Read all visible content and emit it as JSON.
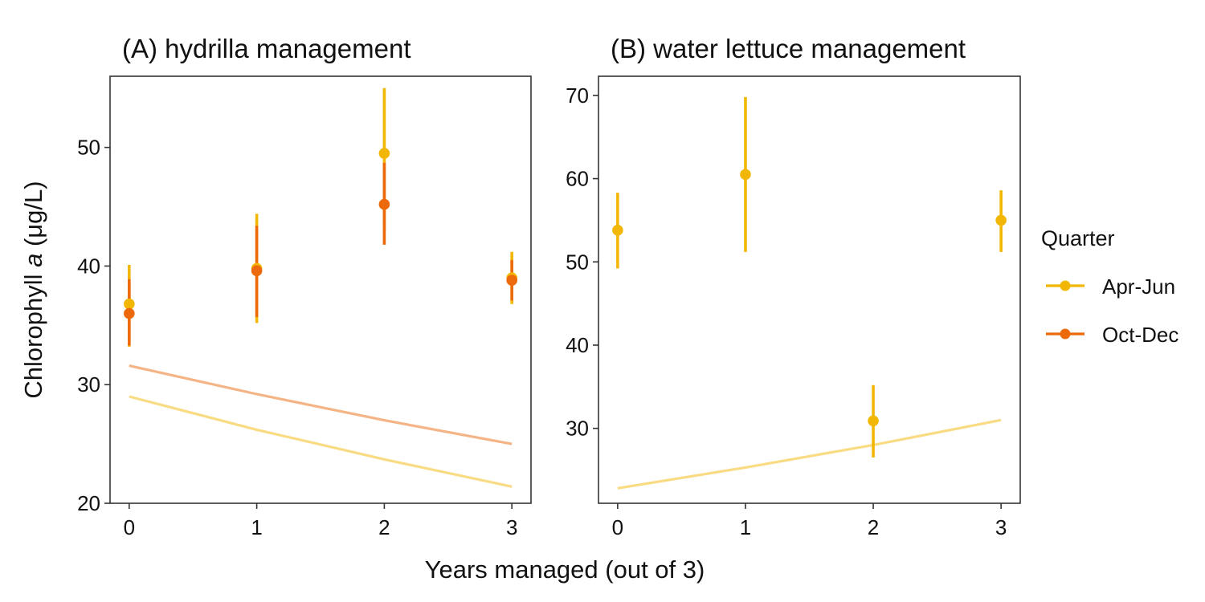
{
  "figure": {
    "xlabel": "Years managed (out of 3)",
    "ylabel_prefix": "Chlorophyll ",
    "ylabel_italic": "a",
    "ylabel_suffix": " (μg/L)"
  },
  "legend": {
    "title": "Quarter",
    "items": [
      {
        "label": "Apr-Jun",
        "color": "#F2B705"
      },
      {
        "label": "Oct-Dec",
        "color": "#EC6A0B"
      }
    ]
  },
  "chart_data": [
    {
      "type": "scatter",
      "title": "(A) hydrilla management",
      "xticks": [
        0,
        1,
        2,
        3
      ],
      "xlim": [
        -0.15,
        3.15
      ],
      "yticks": [
        20,
        30,
        40,
        50
      ],
      "ylim": [
        20,
        56
      ],
      "series": [
        {
          "name": "Apr-Jun",
          "color": "#F2B705",
          "x": [
            0,
            1,
            2,
            3
          ],
          "y": [
            36.8,
            39.8,
            49.5,
            39.0
          ],
          "ci_low": [
            33.2,
            35.2,
            43.0,
            36.8
          ],
          "ci_high": [
            40.1,
            44.4,
            55.0,
            41.2
          ],
          "fit_line": {
            "x": [
              0,
              1,
              2,
              3
            ],
            "y": [
              29.0,
              26.2,
              23.7,
              21.4
            ]
          }
        },
        {
          "name": "Oct-Dec",
          "color": "#EC6A0B",
          "x": [
            0,
            1,
            2,
            3
          ],
          "y": [
            36.0,
            39.6,
            45.2,
            38.8
          ],
          "ci_low": [
            33.3,
            35.7,
            41.8,
            37.1
          ],
          "ci_high": [
            38.9,
            43.4,
            48.7,
            40.5
          ],
          "fit_line": {
            "x": [
              0,
              1,
              2,
              3
            ],
            "y": [
              31.6,
              29.2,
              27.0,
              25.0
            ]
          }
        }
      ]
    },
    {
      "type": "scatter",
      "title": "(B) water lettuce management",
      "xticks": [
        0,
        1,
        2,
        3
      ],
      "xlim": [
        -0.15,
        3.15
      ],
      "yticks": [
        30,
        40,
        50,
        60,
        70
      ],
      "ylim": [
        21,
        72.3
      ],
      "series": [
        {
          "name": "Apr-Jun",
          "color": "#F2B705",
          "x": [
            0,
            1,
            2,
            3
          ],
          "y": [
            53.8,
            60.5,
            30.9,
            55.0
          ],
          "ci_low": [
            49.2,
            51.2,
            26.5,
            51.2
          ],
          "ci_high": [
            58.3,
            69.8,
            35.2,
            58.6
          ],
          "fit_line": {
            "x": [
              0,
              1,
              2,
              3
            ],
            "y": [
              22.8,
              25.3,
              28.0,
              31.0
            ]
          }
        }
      ]
    }
  ]
}
